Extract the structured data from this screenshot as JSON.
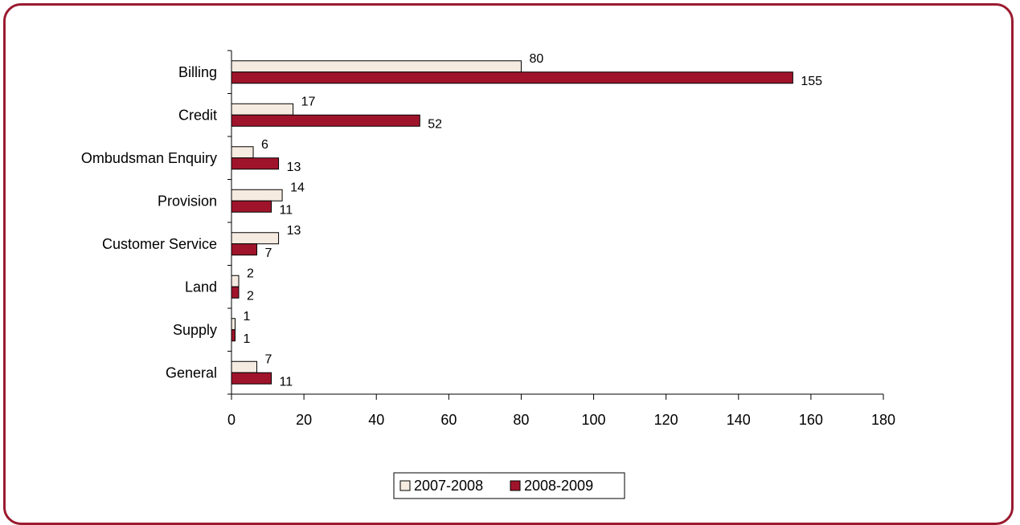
{
  "colors": {
    "series1": "#f6ebe0",
    "series2": "#a0142b",
    "frame": "#9b1b30",
    "axis": "#000000"
  },
  "chart_data": {
    "type": "bar",
    "orientation": "horizontal",
    "categories": [
      "Billing",
      "Credit",
      "Ombudsman Enquiry",
      "Provision",
      "Customer Service",
      "Land",
      "Supply",
      "General"
    ],
    "series": [
      {
        "name": "2007-2008",
        "values": [
          80,
          17,
          6,
          14,
          13,
          2,
          1,
          7
        ]
      },
      {
        "name": "2008-2009",
        "values": [
          155,
          52,
          13,
          11,
          7,
          2,
          1,
          11
        ]
      }
    ],
    "xlim": [
      0,
      180
    ],
    "xticks": [
      "0",
      "20",
      "40",
      "60",
      "80",
      "100",
      "120",
      "140",
      "160",
      "180"
    ],
    "legend_position": "bottom",
    "grid": false
  }
}
